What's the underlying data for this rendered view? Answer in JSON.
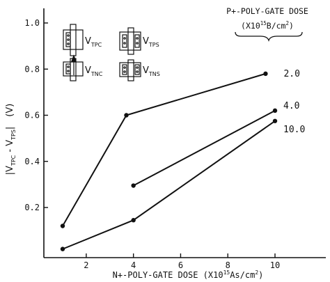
{
  "chart_data": {
    "type": "line",
    "xlabel": "N+-POLY-GATE DOSE (X10",
    "xlabel_sup": "15",
    "xlabel_unit": "As/cm",
    "xlabel_unit_sup": "2",
    "xlabel_close": ")",
    "ylabel_prefix": "|V",
    "ylabel_sub1": "TPC",
    "ylabel_mid": " - V",
    "ylabel_sub2": "TPS",
    "ylabel_suffix": "|",
    "ylabel_unit": "(V)",
    "xlim": [
      0,
      12.5
    ],
    "ylim": [
      0,
      1.1
    ],
    "x_ticks": [
      2,
      4,
      6,
      8,
      10
    ],
    "y_ticks": [
      0.2,
      0.4,
      0.6,
      0.8,
      1.0
    ],
    "x_tick_labels": [
      "2",
      "4",
      "6",
      "8",
      "10"
    ],
    "y_tick_labels": [
      "0.2",
      "0.4",
      "0.6",
      "0.8",
      "1.0"
    ],
    "legend_title_line1": "P+-POLY-GATE DOSE",
    "legend_title_line2_a": "(X10",
    "legend_title_line2_sup": "15",
    "legend_title_line2_b": "B/cm",
    "legend_title_line2_sup2": "2",
    "legend_title_line2_c": ")",
    "series": [
      {
        "name": "2.0",
        "x": [
          1.0,
          3.7,
          9.6
        ],
        "y": [
          0.12,
          0.6,
          0.78
        ]
      },
      {
        "name": "4.0",
        "x": [
          4.0,
          10.0
        ],
        "y": [
          0.295,
          0.62
        ]
      },
      {
        "name": "10.0",
        "x": [
          1.0,
          4.0,
          10.0
        ],
        "y": [
          0.02,
          0.145,
          0.575
        ]
      }
    ],
    "inset_labels": [
      {
        "main": "V",
        "sub": "TPC"
      },
      {
        "main": "V",
        "sub": "TPS"
      },
      {
        "main": "V",
        "sub": "TNC"
      },
      {
        "main": "V",
        "sub": "TNS"
      }
    ]
  }
}
